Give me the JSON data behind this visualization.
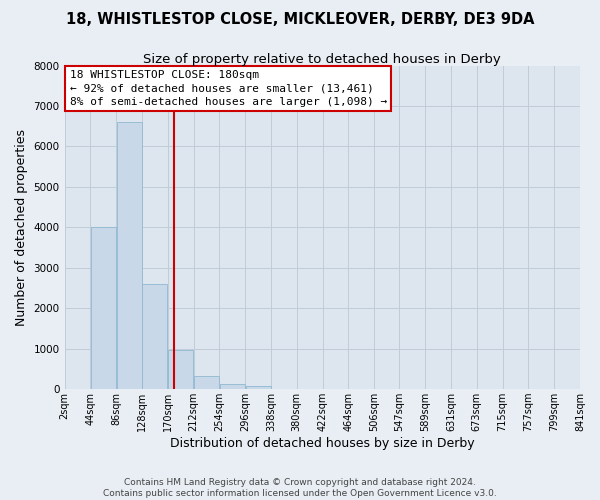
{
  "title": "18, WHISTLESTOP CLOSE, MICKLEOVER, DERBY, DE3 9DA",
  "subtitle": "Size of property relative to detached houses in Derby",
  "xlabel": "Distribution of detached houses by size in Derby",
  "ylabel": "Number of detached properties",
  "bar_values": [
    0,
    4000,
    6600,
    2600,
    975,
    330,
    120,
    90,
    0,
    0,
    0,
    0,
    0,
    0,
    0,
    0,
    0,
    0,
    0,
    0
  ],
  "bin_edges": [
    2,
    44,
    86,
    128,
    170,
    212,
    254,
    296,
    338,
    380,
    422,
    464,
    506,
    547,
    589,
    631,
    673,
    715,
    757,
    799,
    841
  ],
  "tick_labels": [
    "2sqm",
    "44sqm",
    "86sqm",
    "128sqm",
    "170sqm",
    "212sqm",
    "254sqm",
    "296sqm",
    "338sqm",
    "380sqm",
    "422sqm",
    "464sqm",
    "506sqm",
    "547sqm",
    "589sqm",
    "631sqm",
    "673sqm",
    "715sqm",
    "757sqm",
    "799sqm",
    "841sqm"
  ],
  "bar_color": "#c8d8e8",
  "bar_edge_color": "#90b8d0",
  "vline_x": 180,
  "vline_color": "#cc0000",
  "annotation_line1": "18 WHISTLESTOP CLOSE: 180sqm",
  "annotation_line2": "← 92% of detached houses are smaller (13,461)",
  "annotation_line3": "8% of semi-detached houses are larger (1,098) →",
  "ylim": [
    0,
    8000
  ],
  "yticks": [
    0,
    1000,
    2000,
    3000,
    4000,
    5000,
    6000,
    7000,
    8000
  ],
  "footer_text": "Contains HM Land Registry data © Crown copyright and database right 2024.\nContains public sector information licensed under the Open Government Licence v3.0.",
  "fig_bg_color": "#e8eef4",
  "plot_bg_color": "#dde6ef",
  "grid_color": "#c0ccd8",
  "title_fontsize": 10.5,
  "subtitle_fontsize": 9.5,
  "axis_label_fontsize": 9,
  "tick_fontsize": 7,
  "annot_fontsize": 8,
  "footer_fontsize": 6.5
}
